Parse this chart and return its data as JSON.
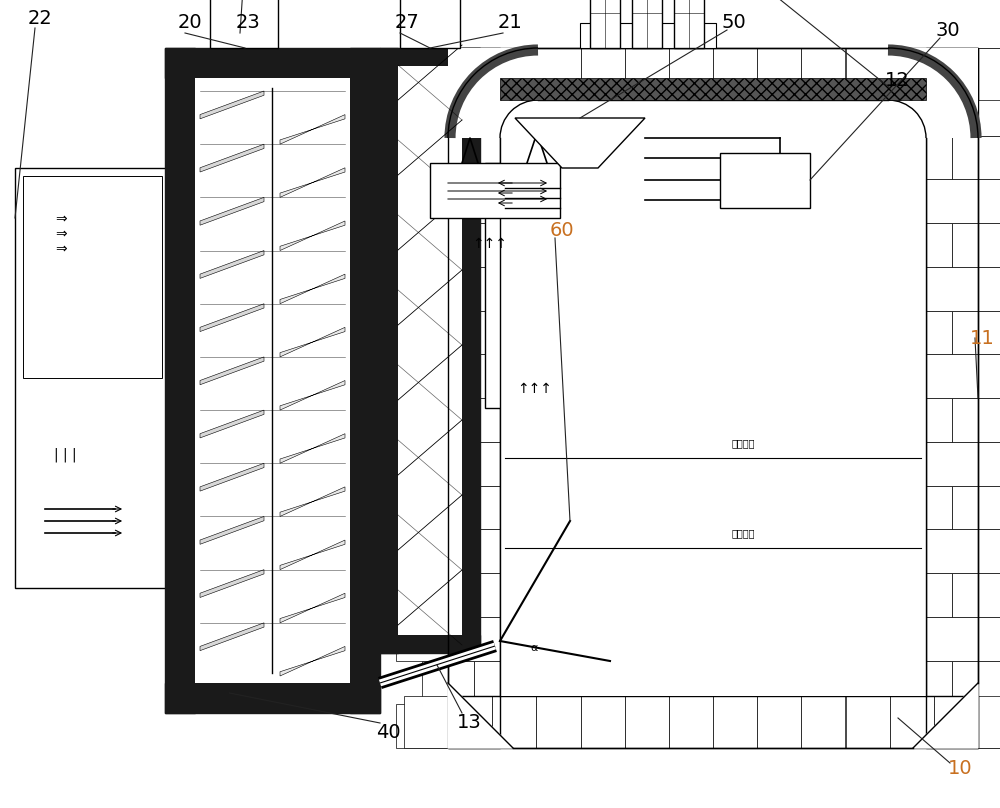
{
  "bg_color": "#ffffff",
  "line_color": "#000000",
  "dark_fill": "#1a1a1a",
  "label_color_orange": "#c87020",
  "label_color_black": "#000000",
  "figsize": [
    10.0,
    8.08
  ],
  "dpi": 100,
  "xlim": [
    0,
    1000
  ],
  "ylim": [
    0,
    808
  ]
}
